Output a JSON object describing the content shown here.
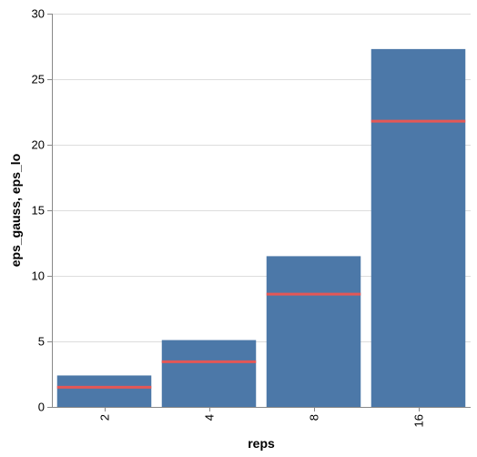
{
  "chart_data": {
    "type": "bar",
    "categories": [
      "2",
      "4",
      "8",
      "16"
    ],
    "series": [
      {
        "values": [
          2.4,
          5.1,
          11.5,
          27.3
        ],
        "color": "#4c78a8",
        "mark": "bar"
      },
      {
        "values": [
          1.5,
          3.45,
          8.6,
          21.8
        ],
        "color": "#e45756",
        "mark": "tick"
      }
    ],
    "xlabel": "reps",
    "ylabel": "eps_gauss, eps_lo",
    "ylim": [
      0,
      30
    ],
    "yticks": [
      0,
      5,
      10,
      15,
      20,
      25,
      30
    ],
    "grid": true
  }
}
